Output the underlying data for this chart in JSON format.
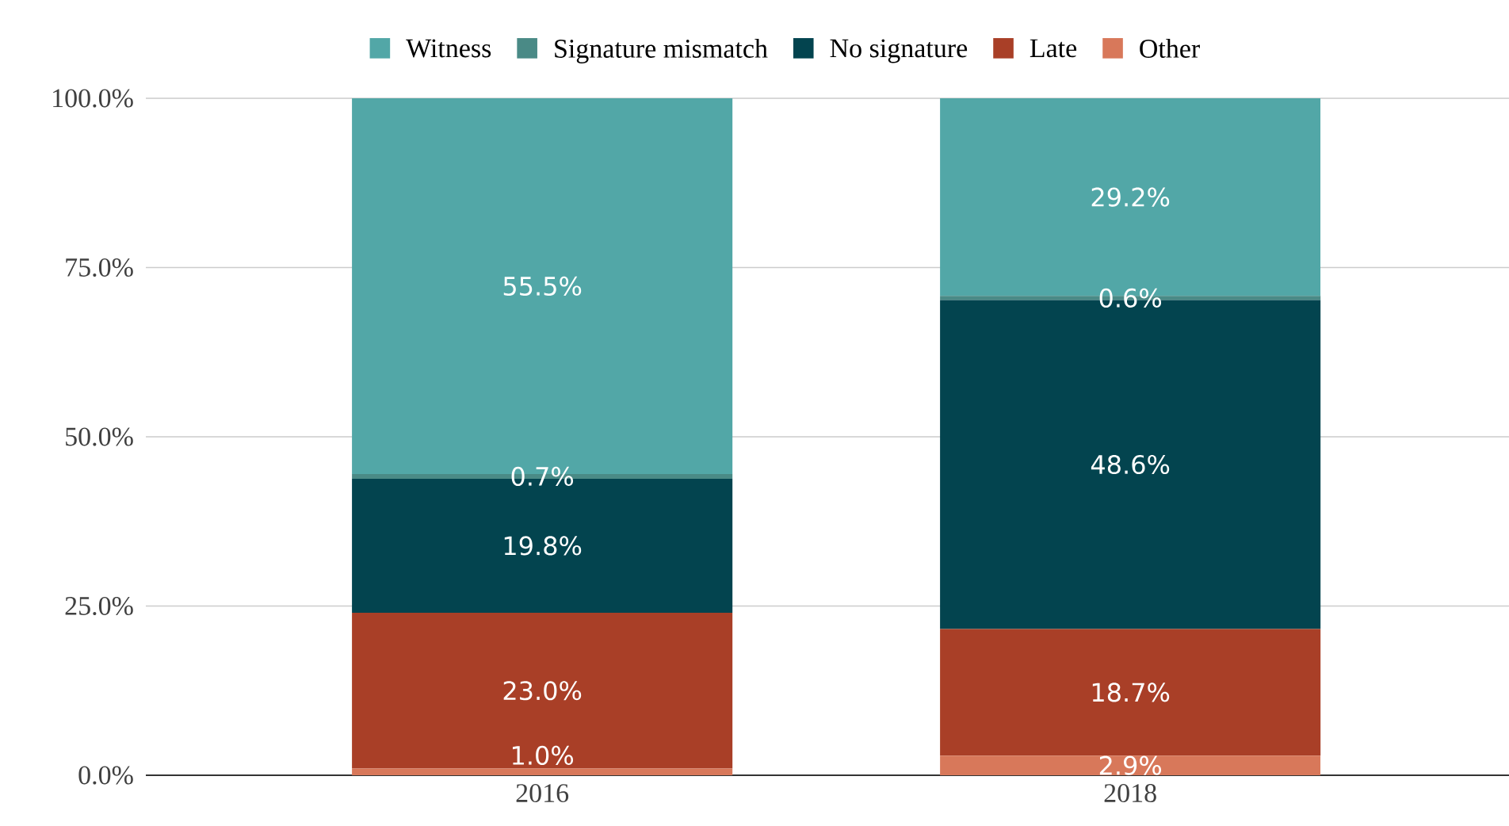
{
  "chart_data": {
    "type": "bar",
    "stacked": true,
    "categories": [
      "2016",
      "2018"
    ],
    "series": [
      {
        "name": "Other",
        "color": "#d8785a",
        "values": [
          1.0,
          2.9
        ],
        "value_labels": [
          "1.0%",
          "2.9%"
        ]
      },
      {
        "name": "Late",
        "color": "#a93f27",
        "values": [
          23.0,
          18.7
        ],
        "value_labels": [
          "23.0%",
          "18.7%"
        ]
      },
      {
        "name": "No signature",
        "color": "#03444f",
        "values": [
          19.8,
          48.6
        ],
        "value_labels": [
          "19.8%",
          "48.6%"
        ]
      },
      {
        "name": "Signature mismatch",
        "color": "#4a8a86",
        "values": [
          0.7,
          0.6
        ],
        "value_labels": [
          "0.7%",
          "0.6%"
        ]
      },
      {
        "name": "Witness",
        "color": "#52a7a7",
        "values": [
          55.5,
          29.2
        ],
        "value_labels": [
          "55.5%",
          "29.2%"
        ]
      }
    ],
    "ylim": [
      0,
      100
    ],
    "yticks": [
      {
        "value": 0,
        "label": "0.0%"
      },
      {
        "value": 25,
        "label": "25.0%"
      },
      {
        "value": 50,
        "label": "50.0%"
      },
      {
        "value": 75,
        "label": "75.0%"
      },
      {
        "value": 100,
        "label": "100.0%"
      }
    ],
    "grid": "y",
    "legend": "top"
  }
}
